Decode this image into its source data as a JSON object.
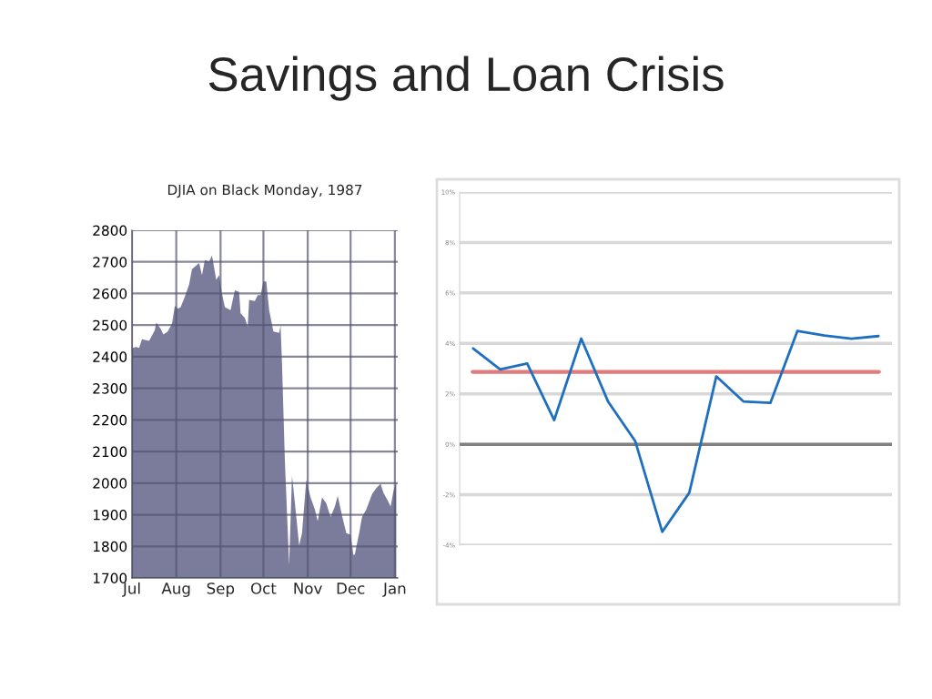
{
  "chart_data": [
    {
      "type": "area",
      "title": "Savings and Loan Crisis",
      "subtitle": "DJIA on Black Monday, 1987",
      "x": [
        "1987-07-01",
        "1987-07-04",
        "1987-07-06",
        "1987-07-08",
        "1987-07-13",
        "1987-07-17",
        "1987-07-18",
        "1987-07-21",
        "1987-07-23",
        "1987-07-26",
        "1987-07-29",
        "1987-07-31",
        "1987-08-02",
        "1987-08-04",
        "1987-08-07",
        "1987-08-10",
        "1987-08-12",
        "1987-08-17",
        "1987-08-19",
        "1987-08-21",
        "1987-08-24",
        "1987-08-26",
        "1987-08-29",
        "1987-08-31",
        "1987-09-02",
        "1987-09-04",
        "1987-09-08",
        "1987-09-11",
        "1987-09-14",
        "1987-09-15",
        "1987-09-18",
        "1987-09-20",
        "1987-09-21",
        "1987-09-25",
        "1987-09-27",
        "1987-09-29",
        "1987-10-01",
        "1987-10-03",
        "1987-10-05",
        "1987-10-08",
        "1987-10-12",
        "1987-10-13",
        "1987-10-14",
        "1987-10-16",
        "1987-10-19",
        "1987-10-21",
        "1987-10-23",
        "1987-10-26",
        "1987-10-28",
        "1987-10-31",
        "1987-11-03",
        "1987-11-06",
        "1987-11-08",
        "1987-11-11",
        "1987-11-14",
        "1987-11-17",
        "1987-11-20",
        "1987-11-22",
        "1987-11-25",
        "1987-11-28",
        "1987-12-01",
        "1987-12-03",
        "1987-12-04",
        "1987-12-07",
        "1987-12-09",
        "1987-12-12",
        "1987-12-16",
        "1987-12-19",
        "1987-12-22",
        "1987-12-24",
        "1987-12-27",
        "1987-12-29",
        "1987-12-31",
        "1988-01-02"
      ],
      "series": [
        {
          "color": "#7b7b9c",
          "values": [
            2427,
            2431,
            2428,
            2455,
            2450,
            2484,
            2508,
            2489,
            2470,
            2480,
            2504,
            2561,
            2552,
            2556,
            2590,
            2629,
            2677,
            2696,
            2658,
            2706,
            2701,
            2720,
            2643,
            2658,
            2600,
            2557,
            2547,
            2610,
            2605,
            2537,
            2523,
            2494,
            2580,
            2576,
            2595,
            2595,
            2638,
            2638,
            2547,
            2480,
            2475,
            2499,
            2379,
            2072,
            1740,
            2024,
            1938,
            1803,
            1842,
            2010,
            1955,
            1917,
            1879,
            1955,
            1936,
            1893,
            1926,
            1960,
            1897,
            1842,
            1837,
            1772,
            1775,
            1842,
            1893,
            1917,
            1965,
            1984,
            1998,
            1969,
            1945,
            1926,
            1974,
            2003
          ]
        }
      ],
      "xlim": [
        "1987-07-01",
        "1988-01-03"
      ],
      "xticks": [
        {
          "value": "1987-07-01",
          "label": "Jul"
        },
        {
          "value": "1987-08-01",
          "label": "Aug"
        },
        {
          "value": "1987-09-01",
          "label": "Sep"
        },
        {
          "value": "1987-10-01",
          "label": "Oct"
        },
        {
          "value": "1987-11-01",
          "label": "Nov"
        },
        {
          "value": "1987-12-01",
          "label": "Dec"
        },
        {
          "value": "1988-01-01",
          "label": "Jan"
        }
      ],
      "ylim": [
        1700,
        2800
      ],
      "yticks": [
        1700,
        1800,
        1900,
        2000,
        2100,
        2200,
        2300,
        2400,
        2500,
        2600,
        2700,
        2800
      ],
      "grid": true
    },
    {
      "type": "line",
      "categories": [
        null,
        null,
        null,
        null,
        null,
        null,
        null,
        null,
        null,
        null,
        null,
        null,
        null,
        null,
        null,
        null
      ],
      "series": [
        {
          "color": "#1f6fc0",
          "values": [
            3.8,
            2.97,
            3.2,
            0.96,
            4.19,
            1.68,
            0.12,
            -3.47,
            -1.92,
            2.69,
            1.7,
            1.64,
            4.49,
            4.31,
            4.19,
            4.29
          ]
        }
      ],
      "ylim": [
        -4,
        10
      ],
      "yticks": [
        {
          "value": -4,
          "label": "-4%"
        },
        {
          "value": -2,
          "label": "-2%"
        },
        {
          "value": 0,
          "label": "0%"
        },
        {
          "value": 2,
          "label": "2%"
        },
        {
          "value": 4,
          "label": "4%"
        },
        {
          "value": 6,
          "label": "6%"
        },
        {
          "value": 8,
          "label": "8%"
        },
        {
          "value": 10,
          "label": "10%"
        }
      ],
      "ref_lines": [
        {
          "axis": "y",
          "value": 0,
          "color": "#808080"
        },
        {
          "axis": "y",
          "value": 2.87,
          "color": "#e07b7b"
        }
      ],
      "grid": "y"
    }
  ]
}
